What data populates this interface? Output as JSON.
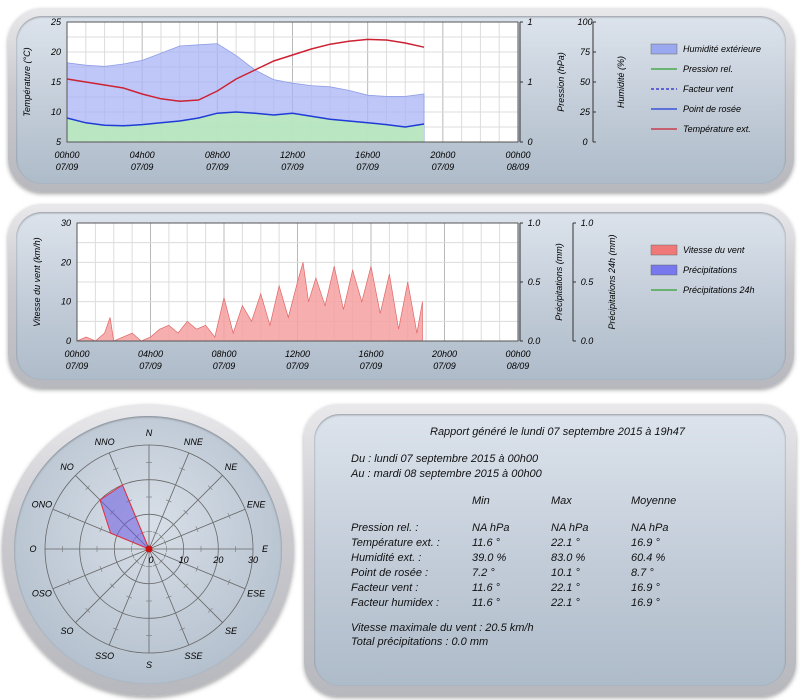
{
  "chart_data": [
    {
      "type": "area",
      "x_ticks": [
        {
          "time": "00h00",
          "date": "07/09"
        },
        {
          "time": "04h00",
          "date": "07/09"
        },
        {
          "time": "08h00",
          "date": "07/09"
        },
        {
          "time": "12h00",
          "date": "07/09"
        },
        {
          "time": "16h00",
          "date": "07/09"
        },
        {
          "time": "20h00",
          "date": "07/09"
        },
        {
          "time": "00h00",
          "date": "08/09"
        }
      ],
      "x_range": [
        0,
        24
      ],
      "left_axis": {
        "label": "Température (°C)",
        "ylim": [
          5,
          25
        ],
        "ticks": [
          "5",
          "10",
          "15",
          "20",
          "25"
        ]
      },
      "right_axis_1": {
        "label": "Pression (hPa)",
        "ylim": [
          0,
          1
        ],
        "ticks": [
          "0",
          "1",
          "1"
        ]
      },
      "right_axis_2": {
        "label": "Humidité (%)",
        "ylim": [
          0,
          100
        ],
        "ticks": [
          "0",
          "25",
          "50",
          "75",
          "100"
        ]
      },
      "series": [
        {
          "name": "Humidité extérieure",
          "axis": "humidity",
          "color": "#9aa8f0",
          "x": [
            0,
            1,
            2,
            3,
            4,
            5,
            6,
            7,
            8,
            9,
            10,
            11,
            12,
            13,
            14,
            15,
            16,
            17,
            18,
            19
          ],
          "values": [
            66,
            64,
            63,
            65,
            68,
            74,
            80,
            81,
            82,
            72,
            60,
            52,
            49,
            47,
            46,
            43,
            39,
            38,
            38,
            40
          ]
        },
        {
          "name": "Pression rel.",
          "axis": "pressure",
          "color": "#2ca02c",
          "x": [],
          "values": []
        },
        {
          "name": "Facteur vent",
          "axis": "temperature",
          "color": "#2222cc",
          "dashed": true,
          "x": [],
          "values": []
        },
        {
          "name": "Point de rosée",
          "axis": "temperature",
          "color": "#1f3bd6",
          "x": [
            0,
            1,
            2,
            3,
            4,
            5,
            6,
            7,
            8,
            9,
            10,
            11,
            12,
            13,
            14,
            15,
            16,
            17,
            18,
            19
          ],
          "values": [
            9.0,
            8.2,
            7.8,
            7.7,
            7.9,
            8.2,
            8.5,
            9.0,
            9.8,
            10.0,
            9.8,
            9.5,
            9.8,
            9.3,
            8.8,
            8.5,
            8.2,
            7.9,
            7.5,
            8.0
          ]
        },
        {
          "name": "Température ext.",
          "axis": "temperature",
          "color": "#cc2233",
          "x": [
            0,
            1,
            2,
            3,
            4,
            5,
            6,
            7,
            8,
            9,
            10,
            11,
            12,
            13,
            14,
            15,
            16,
            17,
            18,
            19
          ],
          "values": [
            15.5,
            15.0,
            14.5,
            14.0,
            13.0,
            12.2,
            11.8,
            12.0,
            13.5,
            15.5,
            17.0,
            18.5,
            19.5,
            20.5,
            21.3,
            21.8,
            22.1,
            22.0,
            21.5,
            20.8
          ]
        }
      ],
      "grid": true,
      "legend": "right"
    },
    {
      "type": "area",
      "x_ticks": [
        {
          "time": "00h00",
          "date": "07/09"
        },
        {
          "time": "04h00",
          "date": "07/09"
        },
        {
          "time": "08h00",
          "date": "07/09"
        },
        {
          "time": "12h00",
          "date": "07/09"
        },
        {
          "time": "16h00",
          "date": "07/09"
        },
        {
          "time": "20h00",
          "date": "07/09"
        },
        {
          "time": "00h00",
          "date": "08/09"
        }
      ],
      "x_range": [
        0,
        24
      ],
      "left_axis": {
        "label": "Vitesse du vent (km/h)",
        "ylim": [
          0,
          30
        ],
        "ticks": [
          "0",
          "10",
          "20",
          "30"
        ]
      },
      "right_axis_1": {
        "label": "Précipitations (mm)",
        "ylim": [
          0,
          1
        ],
        "ticks": [
          "0.0",
          "0.5",
          "1.0"
        ]
      },
      "right_axis_2": {
        "label": "Précipitations 24h (mm)",
        "ylim": [
          0,
          1
        ],
        "ticks": [
          "0.0",
          "0.5",
          "1.0"
        ]
      },
      "series": [
        {
          "name": "Vitesse du vent",
          "axis": "wind",
          "color": "#f07878",
          "x": [
            0,
            0.5,
            1,
            1.5,
            1.8,
            2,
            2.5,
            3,
            3.5,
            4,
            4.5,
            5,
            5.5,
            6,
            6.5,
            7,
            7.5,
            8,
            8.5,
            9,
            9.5,
            10,
            10.5,
            11,
            11.5,
            12,
            12.3,
            12.6,
            13,
            13.5,
            14,
            14.5,
            15,
            15.5,
            16,
            16.5,
            17,
            17.5,
            18,
            18.5,
            18.8
          ],
          "values": [
            0,
            1,
            0,
            2,
            6,
            0,
            1,
            2,
            0,
            1,
            3,
            4,
            2,
            5,
            3,
            4,
            1,
            11,
            2,
            9,
            5,
            12,
            4,
            14,
            6,
            15,
            20,
            10,
            16,
            9,
            19,
            8,
            18,
            10,
            19,
            7,
            17,
            3,
            15,
            2,
            10
          ]
        },
        {
          "name": "Précipitations",
          "axis": "rain",
          "color": "#7777ee",
          "x": [],
          "values": []
        },
        {
          "name": "Précipitations 24h",
          "axis": "rain24",
          "color": "#2ca02c",
          "x": [],
          "values": []
        }
      ],
      "grid": true,
      "legend": "right"
    },
    {
      "type": "radar",
      "directions": [
        "N",
        "NNE",
        "NE",
        "ENE",
        "E",
        "ESE",
        "SE",
        "SSE",
        "S",
        "SSO",
        "SO",
        "OSO",
        "O",
        "ONO",
        "NO",
        "NNO"
      ],
      "values": [
        0,
        0,
        0,
        0,
        0,
        0,
        0,
        0,
        0,
        0,
        0,
        0,
        0,
        12,
        20,
        20
      ],
      "rlim": [
        0,
        30
      ],
      "ticks": [
        "0",
        "10",
        "20",
        "30"
      ]
    }
  ],
  "report": {
    "title": "Rapport généré le lundi 07 septembre 2015 à 19h47",
    "from": "Du : lundi 07 septembre 2015 à 00h00",
    "to": "Au : mardi 08 septembre 2015 à 00h00",
    "headers": {
      "min": "Min",
      "max": "Max",
      "avg": "Moyenne"
    },
    "rows": [
      {
        "label": "Pression rel. :",
        "min": "NA hPa",
        "max": "NA hPa",
        "avg": "NA hPa"
      },
      {
        "label": "Température ext. :",
        "min": "11.6 °",
        "max": "22.1 °",
        "avg": "16.9 °"
      },
      {
        "label": "Humidité ext. :",
        "min": "39.0 %",
        "max": "83.0 %",
        "avg": "60.4 %"
      },
      {
        "label": "Point de rosée :",
        "min": "7.2 °",
        "max": "10.1 °",
        "avg": "8.7 °"
      },
      {
        "label": "Facteur vent :",
        "min": "11.6 °",
        "max": "22.1 °",
        "avg": "16.9 °"
      },
      {
        "label": "Facteur humidex :",
        "min": "11.6 °",
        "max": "22.1 °",
        "avg": "16.9 °"
      }
    ],
    "max_wind": "Vitesse maximale du vent : 20.5 km/h",
    "total_rain": "Total précipitations : 0.0 mm"
  }
}
